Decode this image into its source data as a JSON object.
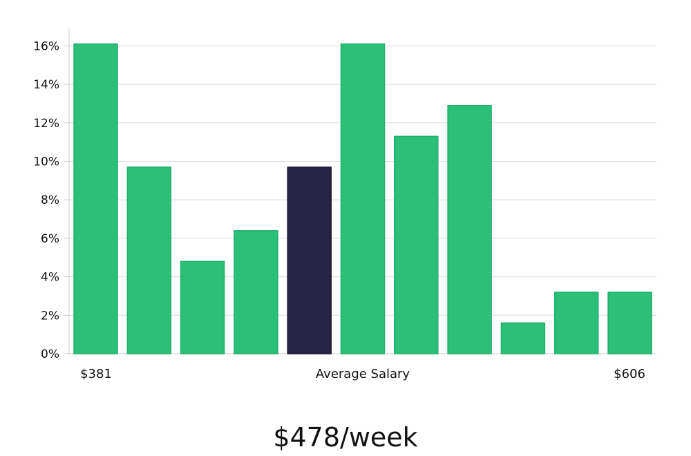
{
  "chart_data": {
    "type": "bar",
    "values": [
      16.1,
      9.7,
      4.8,
      6.4,
      9.7,
      16.1,
      11.3,
      12.9,
      1.6,
      3.2,
      3.2
    ],
    "highlight_index": 4,
    "y_ticks": [
      "0%",
      "2%",
      "4%",
      "6%",
      "8%",
      "10%",
      "12%",
      "14%",
      "16%"
    ],
    "y_tick_values": [
      0,
      2,
      4,
      6,
      8,
      10,
      12,
      14,
      16
    ],
    "ylim": [
      0,
      17
    ],
    "grid": true,
    "x_min_label": "$381",
    "xlabel": "Average Salary",
    "x_max_label": "$606"
  },
  "summary": {
    "average_salary": "$478/week"
  },
  "colors": {
    "bar": "#2bbf78",
    "bar_edge": "#20b06c",
    "highlight": "#282446",
    "grid": "#d9d9d9",
    "axis": "#cccccc"
  }
}
